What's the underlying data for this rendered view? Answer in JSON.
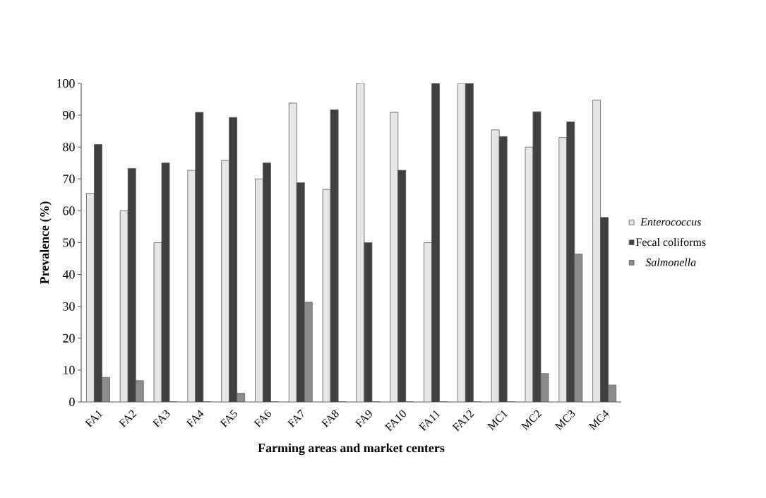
{
  "chart_data": {
    "type": "bar",
    "xlabel": "Farming areas and market centers",
    "ylabel": "Prevalence (%)",
    "categories": [
      "FA1",
      "FA2",
      "FA3",
      "FA4",
      "FA5",
      "FA6",
      "FA7",
      "FA8",
      "FA9",
      "FA10",
      "FA11",
      "FA12",
      "MC1",
      "MC2",
      "MC3",
      "MC4"
    ],
    "series": [
      {
        "name": "*Enterococcus*",
        "color": "#e6e6e6",
        "values": [
          65.5,
          60,
          50,
          72.7,
          75.8,
          70,
          93.8,
          66.7,
          100,
          90.9,
          50,
          100,
          85.4,
          80,
          83,
          94.7
        ]
      },
      {
        "name": "Fecal coliforms",
        "color": "#404040",
        "values": [
          80.8,
          73.3,
          75,
          90.9,
          89.3,
          75,
          68.8,
          91.7,
          50,
          72.7,
          100,
          100,
          83.3,
          91.1,
          87.9,
          57.9
        ]
      },
      {
        "name": "*Salmonella*",
        "color": "#8c8c8c",
        "values": [
          7.7,
          6.7,
          0,
          0,
          2.7,
          0,
          31.3,
          0,
          0,
          0,
          0,
          0,
          0,
          8.9,
          46.4,
          5.3
        ]
      }
    ],
    "ylim": [
      0,
      100
    ],
    "yticks": [
      0,
      10,
      20,
      30,
      40,
      50,
      60,
      70,
      80,
      90,
      100
    ],
    "grid": false,
    "legend": "right"
  }
}
